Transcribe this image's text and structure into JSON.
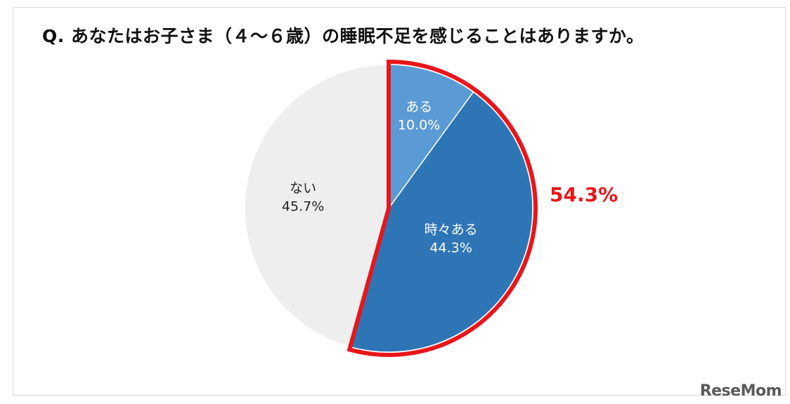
{
  "title": "Q.  あなたはお子さま（４～６歳）の睡眠不足を感じることはありますか。",
  "chart_data": {
    "type": "pie",
    "title": "Q.  あなたはお子さま（４～６歳）の睡眠不足を感じることはありますか。",
    "slices": [
      {
        "label": "ある",
        "value": 10.0,
        "value_text": "10.0%",
        "color": "#5b9bd5",
        "text_color": "#ffffff"
      },
      {
        "label": "時々ある",
        "value": 44.3,
        "value_text": "44.3%",
        "color": "#2e75b6",
        "text_color": "#ffffff"
      },
      {
        "label": "ない",
        "value": 45.7,
        "value_text": "45.7%",
        "color": "#eeeeee",
        "text_color": "#222222"
      }
    ],
    "start_angle": "12 o'clock",
    "direction": "clockwise",
    "highlight": {
      "slices": [
        "ある",
        "時々ある"
      ],
      "value": 54.3,
      "value_text": "54.3%",
      "color": "#e8161a"
    }
  },
  "watermark": "ReseMom"
}
